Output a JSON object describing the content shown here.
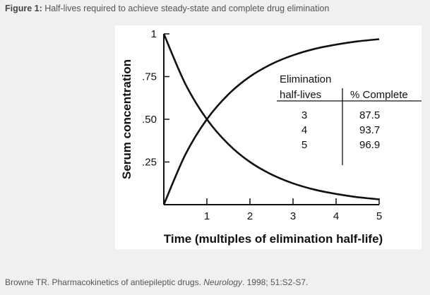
{
  "caption": {
    "label": "Figure 1:",
    "text": "Half-lives required to achieve steady-state and complete drug elimination"
  },
  "citation": {
    "prefix": "Browne TR. Pharmacokinetics of antiepileptic drugs. ",
    "journal": "Neurology",
    "suffix": ". 1998; 51:S2-S7."
  },
  "chart_data": {
    "type": "line",
    "title": "",
    "xlabel": "Time (multiples of elimination half-life)",
    "ylabel": "Serum concentration",
    "xlim": [
      0,
      5
    ],
    "ylim": [
      0,
      1
    ],
    "x_ticks": [
      "1",
      "2",
      "3",
      "4",
      "5"
    ],
    "y_ticks": [
      {
        "value": 1,
        "label": "1"
      },
      {
        "value": 0.75,
        "label": ".75"
      },
      {
        "value": 0.5,
        "label": ".50"
      },
      {
        "value": 0.25,
        "label": ".25"
      }
    ],
    "grid": false,
    "series": [
      {
        "values_x": [
          0,
          0.5,
          1,
          1.5,
          2,
          2.5,
          3,
          3.5,
          4,
          4.5,
          5
        ],
        "values_y": [
          1.0,
          0.707,
          0.5,
          0.354,
          0.25,
          0.177,
          0.125,
          0.088,
          0.063,
          0.044,
          0.031
        ]
      },
      {
        "values_x": [
          0,
          0.5,
          1,
          1.5,
          2,
          2.5,
          3,
          3.5,
          4,
          4.5,
          5
        ],
        "values_y": [
          0.0,
          0.293,
          0.5,
          0.646,
          0.75,
          0.823,
          0.875,
          0.912,
          0.937,
          0.956,
          0.969
        ]
      }
    ],
    "table": {
      "header_line1": "Elimination",
      "header_line2": "half-lives",
      "header_col2": "% Complete",
      "rows": [
        {
          "half_lives": "3",
          "percent": "87.5"
        },
        {
          "half_lives": "4",
          "percent": "93.7"
        },
        {
          "half_lives": "5",
          "percent": "96.9"
        }
      ]
    }
  }
}
